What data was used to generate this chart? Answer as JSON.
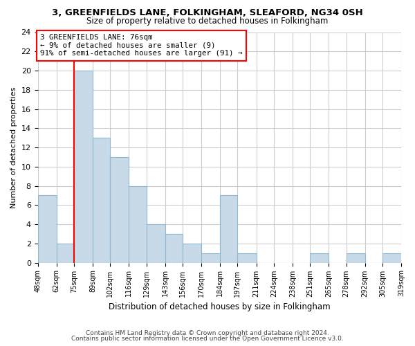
{
  "title": "3, GREENFIELDS LANE, FOLKINGHAM, SLEAFORD, NG34 0SH",
  "subtitle": "Size of property relative to detached houses in Folkingham",
  "xlabel": "Distribution of detached houses by size in Folkingham",
  "ylabel": "Number of detached properties",
  "bar_edges": [
    48,
    62,
    75,
    89,
    102,
    116,
    129,
    143,
    156,
    170,
    184,
    197,
    211,
    224,
    238,
    251,
    265,
    278,
    292,
    305,
    319
  ],
  "bar_heights": [
    7,
    2,
    20,
    13,
    11,
    8,
    4,
    3,
    2,
    1,
    7,
    1,
    0,
    0,
    0,
    1,
    0,
    1,
    0,
    1
  ],
  "bar_color": "#c8d9e8",
  "bar_edgecolor": "#8fb8d0",
  "property_line_x": 75,
  "annotation_title": "3 GREENFIELDS LANE: 76sqm",
  "annotation_line1": "← 9% of detached houses are smaller (9)",
  "annotation_line2": "91% of semi-detached houses are larger (91) →",
  "ylim": [
    0,
    24
  ],
  "xlim": [
    48,
    319
  ],
  "tick_labels": [
    "48sqm",
    "62sqm",
    "75sqm",
    "89sqm",
    "102sqm",
    "116sqm",
    "129sqm",
    "143sqm",
    "156sqm",
    "170sqm",
    "184sqm",
    "197sqm",
    "211sqm",
    "224sqm",
    "238sqm",
    "251sqm",
    "265sqm",
    "278sqm",
    "292sqm",
    "305sqm",
    "319sqm"
  ],
  "footer1": "Contains HM Land Registry data © Crown copyright and database right 2024.",
  "footer2": "Contains public sector information licensed under the Open Government Licence v3.0.",
  "background_color": "#ffffff",
  "grid_color": "#cccccc",
  "title_fontsize": 9.5,
  "subtitle_fontsize": 8.5
}
